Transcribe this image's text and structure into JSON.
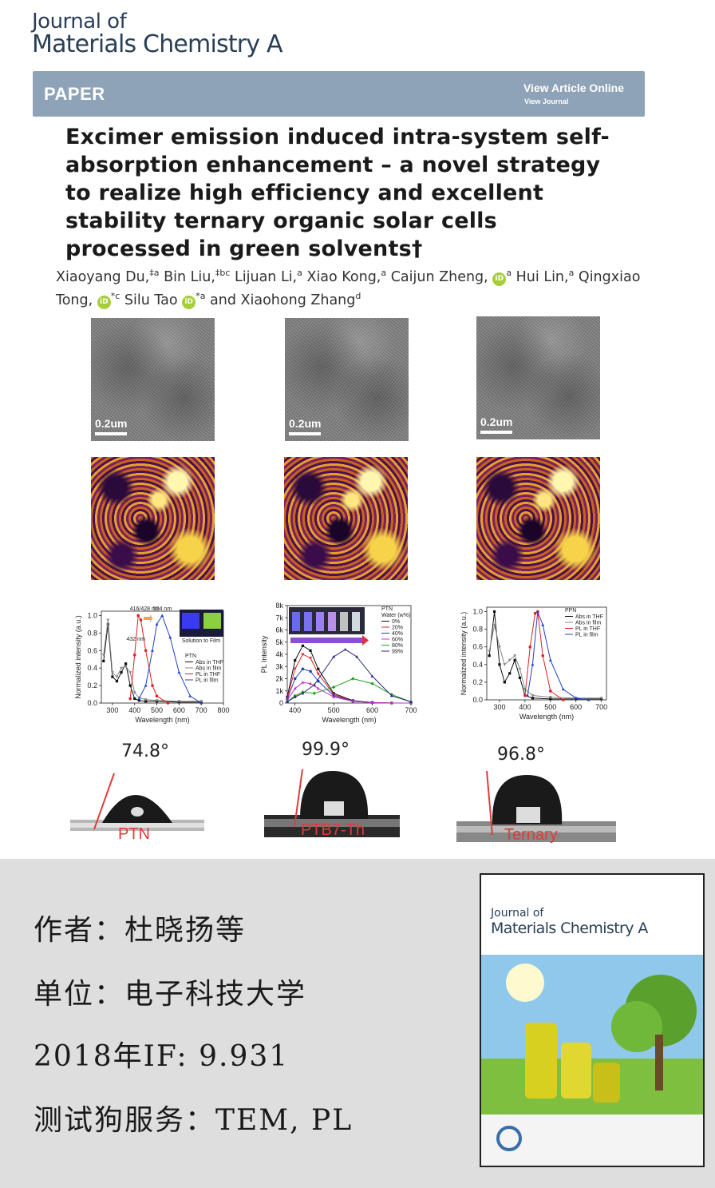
{
  "journal": {
    "line1": "Journal of",
    "line2": "Materials Chemistry A"
  },
  "banner": {
    "type": "PAPER",
    "view_online": "View Article Online",
    "view_journal": "View Journal"
  },
  "article": {
    "title": "Excimer emission induced intra-system self-absorption enhancement – a novel strategy to realize high efficiency and excellent stability ternary organic solar cells processed in green solvents†"
  },
  "authors": [
    {
      "name": "Xiaoyang Du,",
      "sup": "‡a"
    },
    {
      "name": "Bin Liu,",
      "sup": "‡bc"
    },
    {
      "name": "Lijuan Li,",
      "sup": "a"
    },
    {
      "name": "Xiao Kong,",
      "sup": "a"
    },
    {
      "name": "Caijun Zheng,",
      "sup": "a",
      "orcid": true
    },
    {
      "name": "Hui Lin,",
      "sup": "a"
    },
    {
      "name": "Qingxiao Tong,",
      "sup": "*c",
      "orcid": true
    },
    {
      "name": "Silu Tao",
      "sup": "*a",
      "orcid": true
    },
    {
      "name": "and Xiaohong Zhang",
      "sup": "d"
    }
  ],
  "tem_images": [
    {
      "scale": "0.2um"
    },
    {
      "scale": "0.2um"
    },
    {
      "scale": "0.2um"
    }
  ],
  "chart_data": [
    {
      "type": "line",
      "xlabel": "Wavelength (nm)",
      "ylabel": "Normalized intensity (a.u.)",
      "x_ticks": [
        "300",
        "400",
        "500",
        "600",
        "700",
        "800"
      ],
      "y_ticks": [
        "0.0",
        "0.2",
        "0.4",
        "0.6",
        "0.8",
        "1.0"
      ],
      "xlim": [
        250,
        800
      ],
      "ylim": [
        0,
        1.05
      ],
      "annotations": [
        "416/428 nm",
        "524 nm",
        "432 nm"
      ],
      "inset_label": "Solution to Film",
      "legend_title": "PTN",
      "series": [
        {
          "name": "Abs in THF",
          "color": "#111111",
          "x": [
            260,
            280,
            300,
            320,
            340,
            360,
            380,
            400,
            420,
            450,
            500,
            600,
            700
          ],
          "y": [
            0.48,
            0.9,
            0.3,
            0.25,
            0.35,
            0.45,
            0.2,
            0.05,
            0.03,
            0.02,
            0.02,
            0.01,
            0.01
          ]
        },
        {
          "name": "Abs in film",
          "color": "#888888",
          "x": [
            260,
            280,
            300,
            320,
            340,
            360,
            380,
            400,
            420,
            450,
            500,
            600,
            700
          ],
          "y": [
            0.55,
            0.95,
            0.35,
            0.3,
            0.4,
            0.42,
            0.35,
            0.12,
            0.06,
            0.04,
            0.03,
            0.02,
            0.02
          ]
        },
        {
          "name": "PL in THF",
          "color": "#e02020",
          "x": [
            380,
            400,
            416,
            428,
            450,
            480,
            500,
            550
          ],
          "y": [
            0.05,
            0.55,
            1.0,
            0.95,
            0.6,
            0.2,
            0.08,
            0.0
          ]
        },
        {
          "name": "PL in film",
          "color": "#2040c0",
          "x": [
            420,
            450,
            480,
            500,
            524,
            560,
            600,
            650,
            700
          ],
          "y": [
            0.05,
            0.2,
            0.6,
            0.9,
            1.0,
            0.75,
            0.35,
            0.08,
            0.0
          ]
        }
      ]
    },
    {
      "type": "line",
      "xlabel": "Wavelength (nm)",
      "ylabel": "PL Intensity",
      "x_ticks": [
        "400",
        "500",
        "600",
        "700"
      ],
      "y_ticks": [
        "0",
        "1k",
        "2k",
        "3k",
        "4k",
        "5k",
        "6k",
        "7k",
        "8k"
      ],
      "xlim": [
        380,
        700
      ],
      "ylim": [
        0,
        8000
      ],
      "legend_title": "PTN",
      "legend_subtitle": "Water (w%)",
      "series": [
        {
          "name": "0%",
          "color": "#111111",
          "x": [
            380,
            400,
            420,
            440,
            460,
            500,
            550,
            600,
            650,
            700
          ],
          "y": [
            500,
            3500,
            4700,
            4300,
            2800,
            800,
            200,
            50,
            0,
            0
          ]
        },
        {
          "name": "20%",
          "color": "#e02020",
          "x": [
            380,
            400,
            420,
            440,
            460,
            500,
            550,
            600,
            650,
            700
          ],
          "y": [
            400,
            2800,
            4000,
            3700,
            2400,
            700,
            150,
            40,
            0,
            0
          ]
        },
        {
          "name": "40%",
          "color": "#2040c0",
          "x": [
            380,
            400,
            420,
            440,
            460,
            500,
            550,
            600,
            650,
            700
          ],
          "y": [
            300,
            2000,
            2800,
            2600,
            1800,
            600,
            150,
            30,
            0,
            0
          ]
        },
        {
          "name": "60%",
          "color": "#c030c0",
          "x": [
            380,
            400,
            420,
            440,
            460,
            500,
            550,
            600,
            650,
            700
          ],
          "y": [
            200,
            1200,
            1700,
            1600,
            1200,
            500,
            150,
            30,
            0,
            0
          ]
        },
        {
          "name": "80%",
          "color": "#20a020",
          "x": [
            380,
            400,
            420,
            450,
            500,
            550,
            600,
            650,
            700
          ],
          "y": [
            100,
            600,
            900,
            800,
            1300,
            2000,
            1600,
            700,
            100
          ]
        },
        {
          "name": "99%",
          "color": "#2a2a7a",
          "x": [
            380,
            400,
            420,
            450,
            500,
            530,
            560,
            600,
            650,
            700
          ],
          "y": [
            100,
            500,
            800,
            1500,
            3800,
            4400,
            3800,
            2200,
            600,
            100
          ]
        }
      ]
    },
    {
      "type": "line",
      "xlabel": "Wavelength (nm)",
      "ylabel": "Normalized intensity (a.u.)",
      "x_ticks": [
        "300",
        "400",
        "500",
        "600",
        "700"
      ],
      "y_ticks": [
        "0.0",
        "0.2",
        "0.4",
        "0.6",
        "0.8",
        "1.0"
      ],
      "xlim": [
        250,
        720
      ],
      "ylim": [
        0,
        1.05
      ],
      "legend_title": "PPN",
      "series": [
        {
          "name": "Abs in THF",
          "color": "#111111",
          "x": [
            260,
            280,
            300,
            320,
            340,
            360,
            380,
            400,
            430,
            500,
            600,
            700
          ],
          "y": [
            0.5,
            1.0,
            0.4,
            0.2,
            0.3,
            0.45,
            0.25,
            0.05,
            0.02,
            0.01,
            0.01,
            0.01
          ]
        },
        {
          "name": "Abs in film",
          "color": "#888888",
          "x": [
            260,
            280,
            300,
            320,
            340,
            360,
            380,
            400,
            430,
            500,
            600,
            700
          ],
          "y": [
            0.55,
            0.85,
            0.6,
            0.4,
            0.45,
            0.5,
            0.35,
            0.12,
            0.05,
            0.03,
            0.02,
            0.02
          ]
        },
        {
          "name": "PL in THF",
          "color": "#e02020",
          "x": [
            400,
            420,
            440,
            450,
            470,
            500,
            550
          ],
          "y": [
            0.05,
            0.6,
            0.98,
            1.0,
            0.5,
            0.1,
            0.0
          ]
        },
        {
          "name": "PL in film",
          "color": "#2040c0",
          "x": [
            410,
            430,
            450,
            470,
            500,
            550,
            600,
            650
          ],
          "y": [
            0.05,
            0.4,
            1.0,
            0.85,
            0.45,
            0.12,
            0.02,
            0.0
          ]
        }
      ]
    }
  ],
  "contact_angles": [
    {
      "angle": "74.8°",
      "sample": "PTN"
    },
    {
      "angle": "99.9°",
      "sample": "PTB7-Th"
    },
    {
      "angle": "96.8°",
      "sample": "Ternary"
    }
  ],
  "info": {
    "author": "作者：杜晓扬等",
    "affiliation": "单位：电子科技大学",
    "impact": "2018年IF: 9.931",
    "service": "测试狗服务：TEM, PL"
  },
  "cover": {
    "title1": "Journal of",
    "title2": "Materials Chemistry A"
  },
  "colors": {
    "banner": "#8fa3b8",
    "journal_text": "#2a3f57",
    "orcid": "#a6ce39",
    "sample_label": "#e23a3a",
    "info_bg": "#dedede"
  }
}
